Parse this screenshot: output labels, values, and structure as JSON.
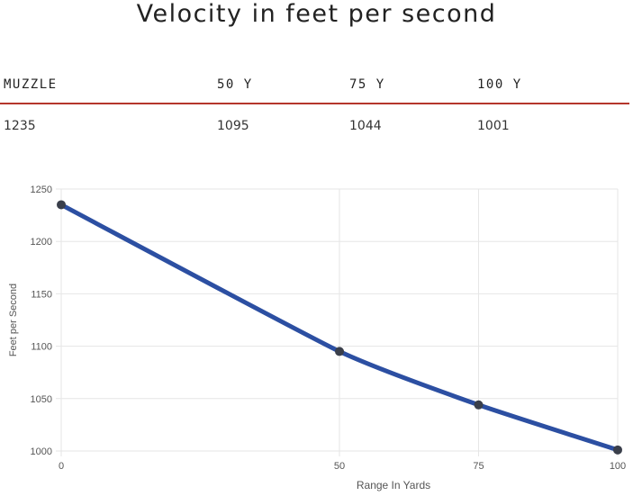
{
  "page": {
    "title": "Velocity in feet per second"
  },
  "velocity_table": {
    "headers": [
      "MUZZLE",
      "50 Y",
      "75 Y",
      "100 Y"
    ],
    "values": [
      "1235",
      "1095",
      "1044",
      "1001"
    ]
  },
  "colors": {
    "accent_rule": "#b5362b",
    "series_line": "#2c4fa2",
    "series_point": "#3a3f4b",
    "grid": "#e6e6e6",
    "tick_text": "#555555"
  },
  "chart_data": {
    "type": "line",
    "title": "",
    "xlabel": "Range In Yards",
    "ylabel": "Feet per Second",
    "x": [
      0,
      50,
      75,
      100
    ],
    "xticks": [
      "0",
      "50",
      "75",
      "100"
    ],
    "yticks": [
      "1000",
      "1050",
      "1100",
      "1150",
      "1200",
      "1250"
    ],
    "xlim": [
      0,
      100
    ],
    "ylim": [
      1000,
      1250
    ],
    "grid": true,
    "series": [
      {
        "name": "Velocity",
        "values": [
          1235,
          1095,
          1044,
          1001
        ]
      }
    ]
  }
}
